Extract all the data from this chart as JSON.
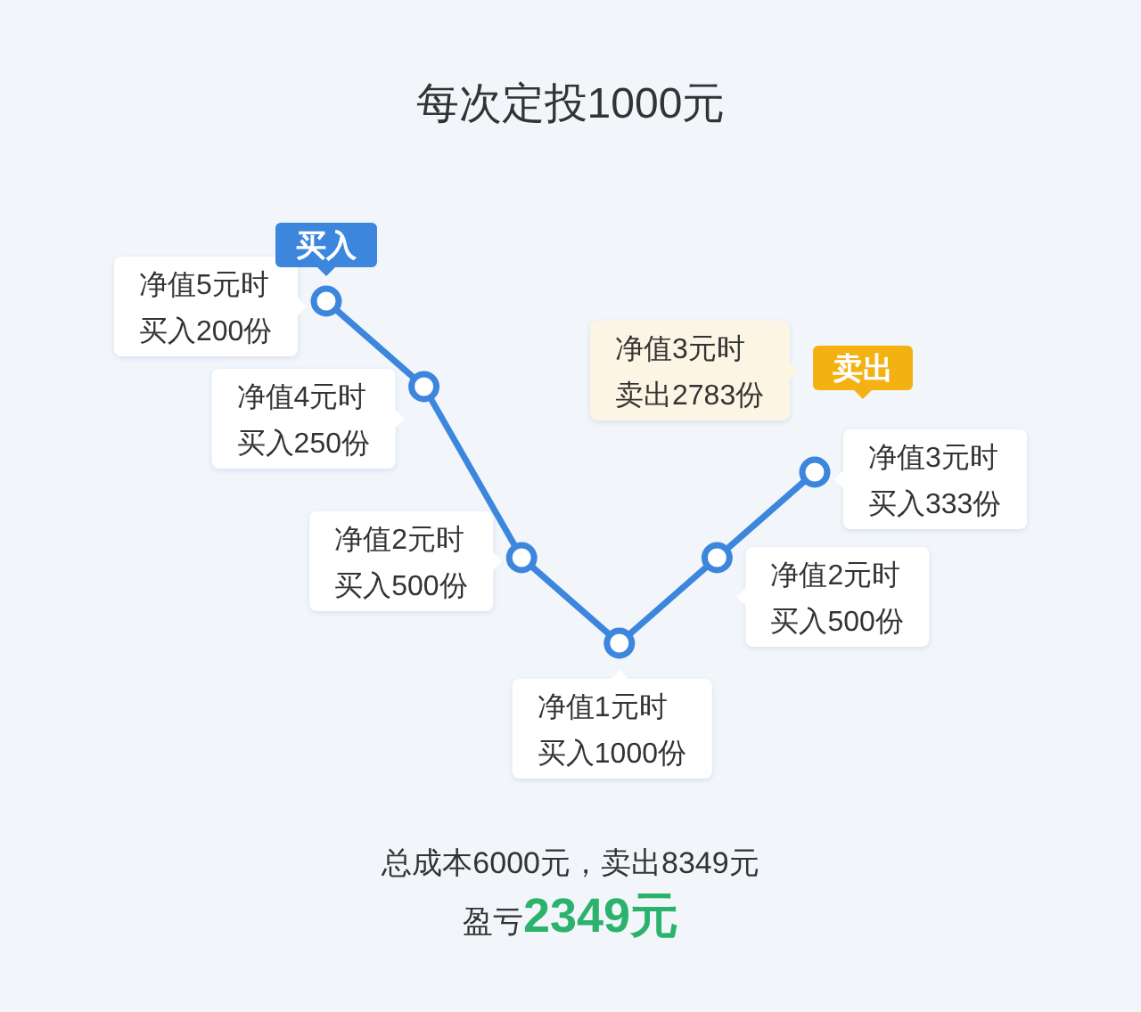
{
  "chart_data": {
    "type": "line",
    "title": "每次定投1000元",
    "categories": [
      null,
      null,
      null,
      null,
      null,
      null
    ],
    "values": [
      5,
      4,
      2,
      1,
      2,
      3
    ],
    "value_labels": [
      "净值5元时买入200份",
      "净值4元时买入250份",
      "净值2元时买入500份",
      "净值1元时买入1000份",
      "净值2元时买入500份",
      "净值3元时买入333份"
    ],
    "color": "#3d86dd",
    "marker": "circle",
    "annotations": [
      "买入",
      "卖出",
      "净值3元时卖出2783份",
      "总成本6000元，卖出8349元",
      "盈亏",
      "2349元"
    ]
  }
}
